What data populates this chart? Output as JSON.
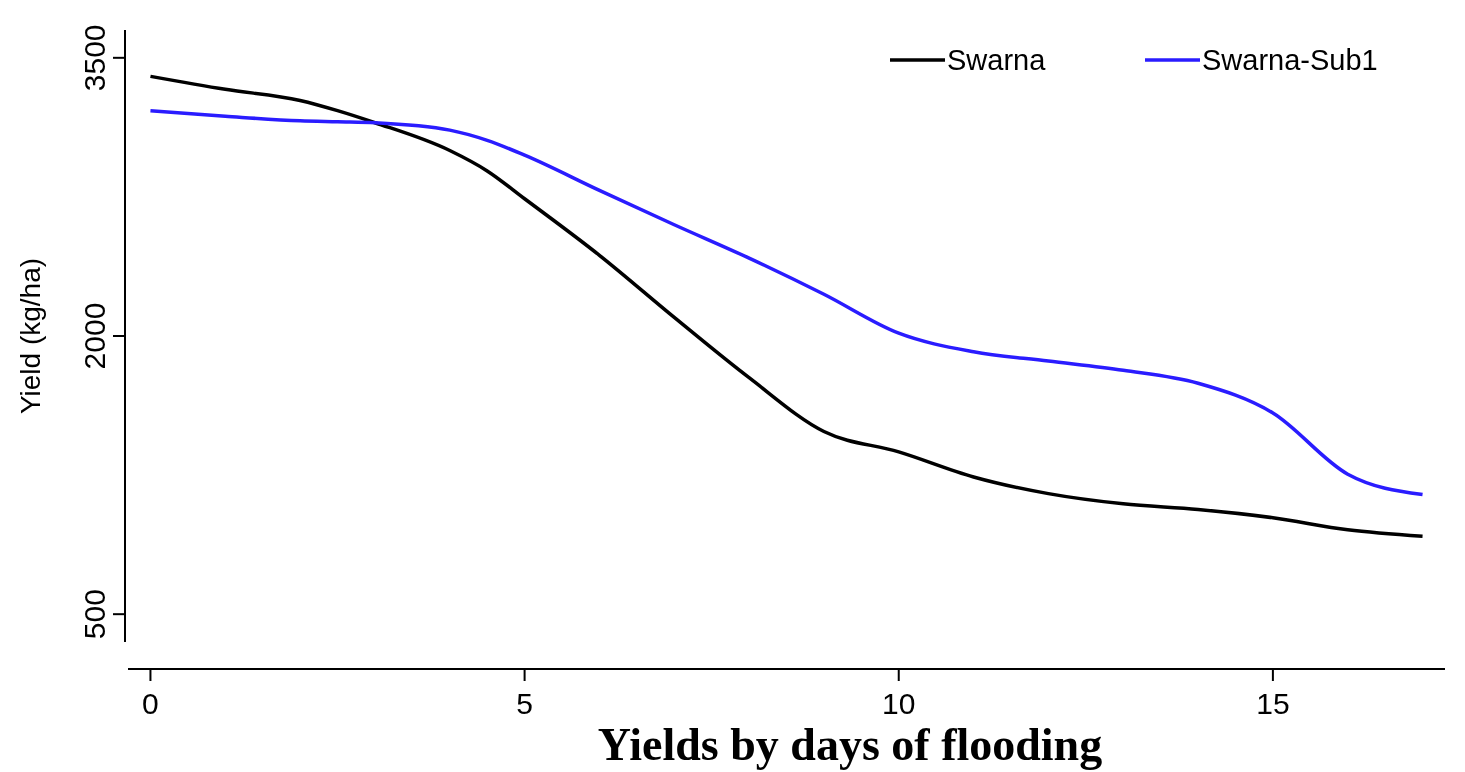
{
  "chart_data": {
    "type": "line",
    "title": "Yields by days of flooding",
    "ylabel": "Yield (kg/ha)",
    "x": [
      0,
      1,
      2,
      2.5,
      3,
      4,
      4.5,
      5,
      6,
      7,
      8,
      9,
      10,
      11,
      12,
      13,
      14,
      15,
      16,
      17
    ],
    "series": [
      {
        "name": "Swarna",
        "color": "#000000",
        "values": [
          3400,
          3330,
          3270,
          3215,
          3150,
          3000,
          2890,
          2740,
          2435,
          2100,
          1775,
          1485,
          1375,
          1240,
          1150,
          1095,
          1065,
          1020,
          955,
          920
        ]
      },
      {
        "name": "Swarna-Sub1",
        "color": "#2a1cff",
        "values": [
          3215,
          3185,
          3160,
          3155,
          3150,
          3110,
          3055,
          2975,
          2785,
          2600,
          2420,
          2225,
          2015,
          1915,
          1865,
          1815,
          1745,
          1585,
          1255,
          1145
        ]
      }
    ],
    "xlim": [
      -0.3,
      17.3
    ],
    "ylim": [
      350,
      3650
    ],
    "xticks": [
      0,
      5,
      10,
      15
    ],
    "yticks": [
      500,
      2000,
      3500
    ],
    "grid": false,
    "legend": "top right",
    "marker": "none",
    "line_style": "solid"
  }
}
